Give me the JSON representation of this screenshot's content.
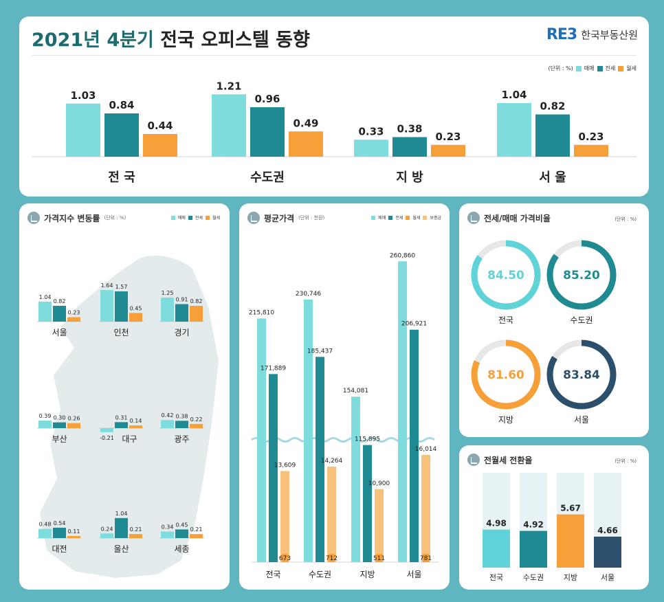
{
  "header": {
    "title_accent": "2021년 4분기",
    "title_rest": " 전국 오피스텔 동향",
    "logo_mark": "RE3",
    "logo_name": "한국부동산원"
  },
  "colors": {
    "sale": "#7fdcdc",
    "jeonse": "#1f8a92",
    "wolse": "#f7a03a",
    "deposit": "#f9c27c",
    "dark": "#2c4f6b"
  },
  "legend": {
    "unit": "(단위 : %)",
    "sale": "매매",
    "jeonse": "전세",
    "wolse": "월세",
    "deposit": "보증금"
  },
  "chart_data": [
    {
      "id": "top",
      "type": "bar",
      "categories": [
        "전 국",
        "수도권",
        "지 방",
        "서 울"
      ],
      "series": [
        {
          "name": "매매",
          "values": [
            1.03,
            1.21,
            0.33,
            1.04
          ]
        },
        {
          "name": "전세",
          "values": [
            0.84,
            0.96,
            0.38,
            0.82
          ]
        },
        {
          "name": "월세",
          "values": [
            0.44,
            0.49,
            0.23,
            0.23
          ]
        }
      ],
      "value_labels": [
        [
          "1.03",
          "1.21",
          "0.33",
          "1.04"
        ],
        [
          "0.84",
          "0.96",
          "0.38",
          "0.82"
        ],
        [
          "0.44",
          "0.49",
          "0.23",
          "0.23"
        ]
      ],
      "unit": "(단위 : %)"
    },
    {
      "id": "regions",
      "type": "bar",
      "title": "가격지수 변동률",
      "unit": "(단위 : %)",
      "regions": [
        {
          "name": "서울",
          "values": [
            1.04,
            0.82,
            0.23
          ],
          "labels": [
            "1.04",
            "0.82",
            "0.23"
          ]
        },
        {
          "name": "인천",
          "values": [
            1.64,
            1.57,
            0.45
          ],
          "labels": [
            "1.64",
            "1.57",
            "0.45"
          ]
        },
        {
          "name": "경기",
          "values": [
            1.25,
            0.91,
            0.82
          ],
          "labels": [
            "1.25",
            "0.91",
            "0.82"
          ]
        },
        {
          "name": "부산",
          "values": [
            0.39,
            0.3,
            0.26
          ],
          "labels": [
            "0.39",
            "0.30",
            "0.26"
          ]
        },
        {
          "name": "대구",
          "values": [
            -0.21,
            0.31,
            0.14
          ],
          "labels": [
            "-0.21",
            "0.31",
            "0.14"
          ]
        },
        {
          "name": "광주",
          "values": [
            0.42,
            0.38,
            0.22
          ],
          "labels": [
            "0.42",
            "0.38",
            "0.22"
          ]
        },
        {
          "name": "대전",
          "values": [
            0.48,
            0.54,
            0.11
          ],
          "labels": [
            "0.48",
            "0.54",
            "0.11"
          ]
        },
        {
          "name": "울산",
          "values": [
            0.24,
            1.04,
            0.21
          ],
          "labels": [
            "0.24",
            "1.04",
            "0.21"
          ]
        },
        {
          "name": "세종",
          "values": [
            0.34,
            0.45,
            0.21
          ],
          "labels": [
            "0.34",
            "0.45",
            "0.21"
          ]
        }
      ]
    },
    {
      "id": "avg_price",
      "type": "bar",
      "title": "평균가격",
      "unit": "(단위 : 천원)",
      "categories": [
        "전국",
        "수도권",
        "지방",
        "서울"
      ],
      "series": [
        {
          "name": "매매",
          "values": [
            215810,
            230746,
            154081,
            260860
          ],
          "labels": [
            "215,810",
            "230,746",
            "154,081",
            "260,860"
          ]
        },
        {
          "name": "전세",
          "values": [
            171889,
            185437,
            115895,
            206921
          ],
          "labels": [
            "171,889",
            "185,437",
            "115,895",
            "206,921"
          ]
        },
        {
          "name": "보증금",
          "values": [
            13609,
            14264,
            10900,
            16014
          ],
          "labels": [
            "13,609",
            "14,264",
            "10,900",
            "16,014"
          ]
        },
        {
          "name": "월세",
          "values": [
            673,
            712,
            511,
            781
          ],
          "labels": [
            "673",
            "712",
            "511",
            "781"
          ]
        }
      ]
    },
    {
      "id": "ratio",
      "type": "pie",
      "title": "전세/매매 가격비율",
      "unit": "(단위 : %)",
      "items": [
        {
          "name": "전국",
          "value": 84.5,
          "label": "84.50",
          "color": "#5fd3d8"
        },
        {
          "name": "수도권",
          "value": 85.2,
          "label": "85.20",
          "color": "#1f8a92"
        },
        {
          "name": "지방",
          "value": 81.6,
          "label": "81.60",
          "color": "#f7a03a"
        },
        {
          "name": "서울",
          "value": 83.84,
          "label": "83.84",
          "color": "#2c4f6b"
        }
      ]
    },
    {
      "id": "conversion",
      "type": "bar",
      "title": "전월세 전환율",
      "unit": "(단위 : %)",
      "categories": [
        "전국",
        "수도권",
        "지방",
        "서울"
      ],
      "values": [
        4.98,
        4.92,
        5.67,
        4.66
      ],
      "labels": [
        "4.98",
        "4.92",
        "5.67",
        "4.66"
      ],
      "colors": [
        "#5fd3d8",
        "#1f8a92",
        "#f7a03a",
        "#2c4f6b"
      ]
    }
  ]
}
